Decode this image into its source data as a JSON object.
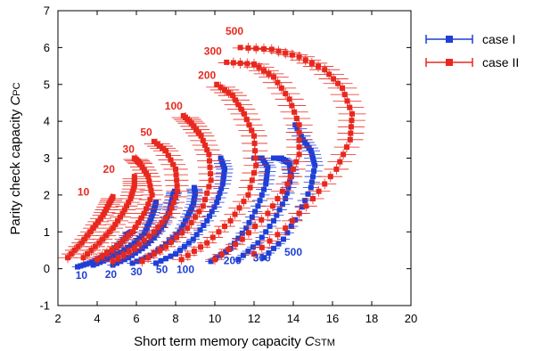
{
  "chart_data": {
    "type": "scatter",
    "xlabel_main": "Short term memory capacity ",
    "xlabel_sym": "C",
    "xlabel_sub": "STM",
    "ylabel_main": "Parity check capacity ",
    "ylabel_sym": "C",
    "ylabel_sub": "PC",
    "xlim": [
      2,
      20
    ],
    "ylim": [
      -1,
      7
    ],
    "xticks": [
      "2",
      "4",
      "6",
      "8",
      "10",
      "12",
      "14",
      "16",
      "18",
      "20"
    ],
    "yticks": [
      "-1",
      "0",
      "1",
      "2",
      "3",
      "4",
      "5",
      "6",
      "7"
    ],
    "colors": {
      "case1": "#1f3fd6",
      "case2": "#e8281e"
    },
    "series": [
      {
        "name": "case I",
        "color": "#1f3fd6",
        "curves": [
          {
            "label": "10",
            "points": [
              [
                3.0,
                0.05
              ],
              [
                3.6,
                0.15
              ],
              [
                4.2,
                0.3
              ],
              [
                4.8,
                0.5
              ],
              [
                5.3,
                0.75
              ],
              [
                5.6,
                0.95
              ],
              [
                5.75,
                1.0
              ]
            ]
          },
          {
            "label": "20",
            "points": [
              [
                3.8,
                0.1
              ],
              [
                4.5,
                0.25
              ],
              [
                5.2,
                0.45
              ],
              [
                5.9,
                0.7
              ],
              [
                6.4,
                0.95
              ],
              [
                6.7,
                1.3
              ],
              [
                6.9,
                1.6
              ],
              [
                7.0,
                1.8
              ]
            ]
          },
          {
            "label": "30",
            "points": [
              [
                4.8,
                0.1
              ],
              [
                5.6,
                0.3
              ],
              [
                6.3,
                0.55
              ],
              [
                6.9,
                0.85
              ],
              [
                7.4,
                1.2
              ],
              [
                7.7,
                1.6
              ],
              [
                7.85,
                1.95
              ],
              [
                7.95,
                2.1
              ]
            ]
          },
          {
            "label": "50",
            "points": [
              [
                5.8,
                0.15
              ],
              [
                6.7,
                0.35
              ],
              [
                7.5,
                0.65
              ],
              [
                8.2,
                1.0
              ],
              [
                8.6,
                1.4
              ],
              [
                8.9,
                1.75
              ],
              [
                9.0,
                2.05
              ],
              [
                8.95,
                2.2
              ]
            ]
          },
          {
            "label": "100",
            "points": [
              [
                7.0,
                0.15
              ],
              [
                8.0,
                0.4
              ],
              [
                8.9,
                0.8
              ],
              [
                9.6,
                1.3
              ],
              [
                10.1,
                1.8
              ],
              [
                10.4,
                2.3
              ],
              [
                10.5,
                2.7
              ],
              [
                10.3,
                3.0
              ]
            ]
          },
          {
            "label": "200",
            "points": [
              [
                9.8,
                0.2
              ],
              [
                10.8,
                0.55
              ],
              [
                11.6,
                1.1
              ],
              [
                12.2,
                1.7
              ],
              [
                12.6,
                2.3
              ],
              [
                12.7,
                2.75
              ],
              [
                12.4,
                3.0
              ],
              [
                12.0,
                3.0
              ]
            ]
          },
          {
            "label": "300",
            "points": [
              [
                11.2,
                0.25
              ],
              [
                12.2,
                0.7
              ],
              [
                13.0,
                1.3
              ],
              [
                13.6,
                1.9
              ],
              [
                13.9,
                2.5
              ],
              [
                13.8,
                2.85
              ],
              [
                13.4,
                3.0
              ],
              [
                13.0,
                3.0
              ]
            ]
          },
          {
            "label": "500",
            "points": [
              [
                12.5,
                0.3
              ],
              [
                13.5,
                0.8
              ],
              [
                14.3,
                1.5
              ],
              [
                14.9,
                2.2
              ],
              [
                15.1,
                2.8
              ],
              [
                14.9,
                3.2
              ],
              [
                14.5,
                3.5
              ],
              [
                14.1,
                3.9
              ]
            ]
          }
        ]
      },
      {
        "name": "case II",
        "color": "#e8281e",
        "curves": [
          {
            "label": "10",
            "points": [
              [
                2.5,
                0.3
              ],
              [
                3.2,
                0.7
              ],
              [
                3.8,
                1.1
              ],
              [
                4.3,
                1.45
              ],
              [
                4.6,
                1.75
              ],
              [
                4.8,
                1.95
              ]
            ]
          },
          {
            "label": "20",
            "points": [
              [
                3.3,
                0.3
              ],
              [
                4.1,
                0.7
              ],
              [
                4.8,
                1.1
              ],
              [
                5.3,
                1.5
              ],
              [
                5.7,
                1.9
              ],
              [
                5.9,
                2.25
              ],
              [
                5.9,
                2.5
              ]
            ]
          },
          {
            "label": "30",
            "points": [
              [
                4.0,
                0.25
              ],
              [
                5.0,
                0.6
              ],
              [
                5.8,
                1.0
              ],
              [
                6.4,
                1.5
              ],
              [
                6.8,
                2.0
              ],
              [
                6.6,
                2.5
              ],
              [
                6.2,
                2.85
              ],
              [
                5.9,
                3.0
              ]
            ]
          },
          {
            "label": "50",
            "points": [
              [
                4.8,
                0.2
              ],
              [
                5.9,
                0.55
              ],
              [
                6.9,
                1.0
              ],
              [
                7.7,
                1.5
              ],
              [
                8.1,
                2.1
              ],
              [
                8.0,
                2.7
              ],
              [
                7.5,
                3.2
              ],
              [
                6.9,
                3.45
              ]
            ]
          },
          {
            "label": "100",
            "points": [
              [
                6.3,
                0.2
              ],
              [
                7.5,
                0.6
              ],
              [
                8.6,
                1.1
              ],
              [
                9.4,
                1.7
              ],
              [
                9.8,
                2.4
              ],
              [
                9.7,
                3.1
              ],
              [
                9.3,
                3.6
              ],
              [
                8.8,
                3.95
              ],
              [
                8.4,
                4.15
              ]
            ]
          },
          {
            "label": "200",
            "points": [
              [
                8.3,
                0.25
              ],
              [
                9.6,
                0.7
              ],
              [
                10.8,
                1.3
              ],
              [
                11.7,
                2.0
              ],
              [
                12.1,
                2.8
              ],
              [
                12.0,
                3.6
              ],
              [
                11.5,
                4.2
              ],
              [
                10.9,
                4.7
              ],
              [
                10.1,
                5.0
              ]
            ]
          },
          {
            "label": "300",
            "points": [
              [
                10.0,
                0.25
              ],
              [
                11.4,
                0.8
              ],
              [
                12.7,
                1.5
              ],
              [
                13.7,
                2.3
              ],
              [
                14.3,
                3.1
              ],
              [
                14.3,
                3.9
              ],
              [
                13.8,
                4.6
              ],
              [
                13.0,
                5.2
              ],
              [
                12.0,
                5.55
              ],
              [
                10.6,
                5.6
              ]
            ]
          },
          {
            "label": "500",
            "points": [
              [
                12.0,
                0.4
              ],
              [
                13.6,
                1.1
              ],
              [
                15.0,
                1.9
              ],
              [
                16.2,
                2.7
              ],
              [
                16.9,
                3.5
              ],
              [
                17.0,
                4.2
              ],
              [
                16.5,
                4.9
              ],
              [
                15.6,
                5.4
              ],
              [
                14.3,
                5.75
              ],
              [
                12.9,
                5.95
              ],
              [
                11.3,
                6.0
              ]
            ]
          }
        ]
      }
    ],
    "annotations": [
      {
        "text": "10",
        "x": 3.2,
        "y": -0.28,
        "series": "case1"
      },
      {
        "text": "20",
        "x": 4.7,
        "y": -0.25,
        "series": "case1"
      },
      {
        "text": "30",
        "x": 6.0,
        "y": -0.18,
        "series": "case1"
      },
      {
        "text": "50",
        "x": 7.3,
        "y": -0.12,
        "series": "case1"
      },
      {
        "text": "100",
        "x": 8.5,
        "y": -0.12,
        "series": "case1"
      },
      {
        "text": "200",
        "x": 10.9,
        "y": 0.12,
        "series": "case1"
      },
      {
        "text": "300",
        "x": 12.4,
        "y": 0.2,
        "series": "case1"
      },
      {
        "text": "500",
        "x": 14.0,
        "y": 0.35,
        "series": "case1"
      },
      {
        "text": "10",
        "x": 3.3,
        "y": 1.98,
        "series": "case2"
      },
      {
        "text": "20",
        "x": 4.6,
        "y": 2.6,
        "series": "case2"
      },
      {
        "text": "30",
        "x": 5.6,
        "y": 3.15,
        "series": "case2"
      },
      {
        "text": "50",
        "x": 6.5,
        "y": 3.6,
        "series": "case2"
      },
      {
        "text": "100",
        "x": 7.9,
        "y": 4.32,
        "series": "case2"
      },
      {
        "text": "200",
        "x": 9.6,
        "y": 5.15,
        "series": "case2"
      },
      {
        "text": "300",
        "x": 9.9,
        "y": 5.8,
        "series": "case2"
      },
      {
        "text": "500",
        "x": 11.0,
        "y": 6.35,
        "series": "case2"
      }
    ],
    "legend": {
      "placement": "top-right-outside",
      "entries": [
        {
          "label": "case I",
          "color": "#1f3fd6"
        },
        {
          "label": "case II",
          "color": "#e8281e"
        }
      ]
    },
    "grid": false
  }
}
